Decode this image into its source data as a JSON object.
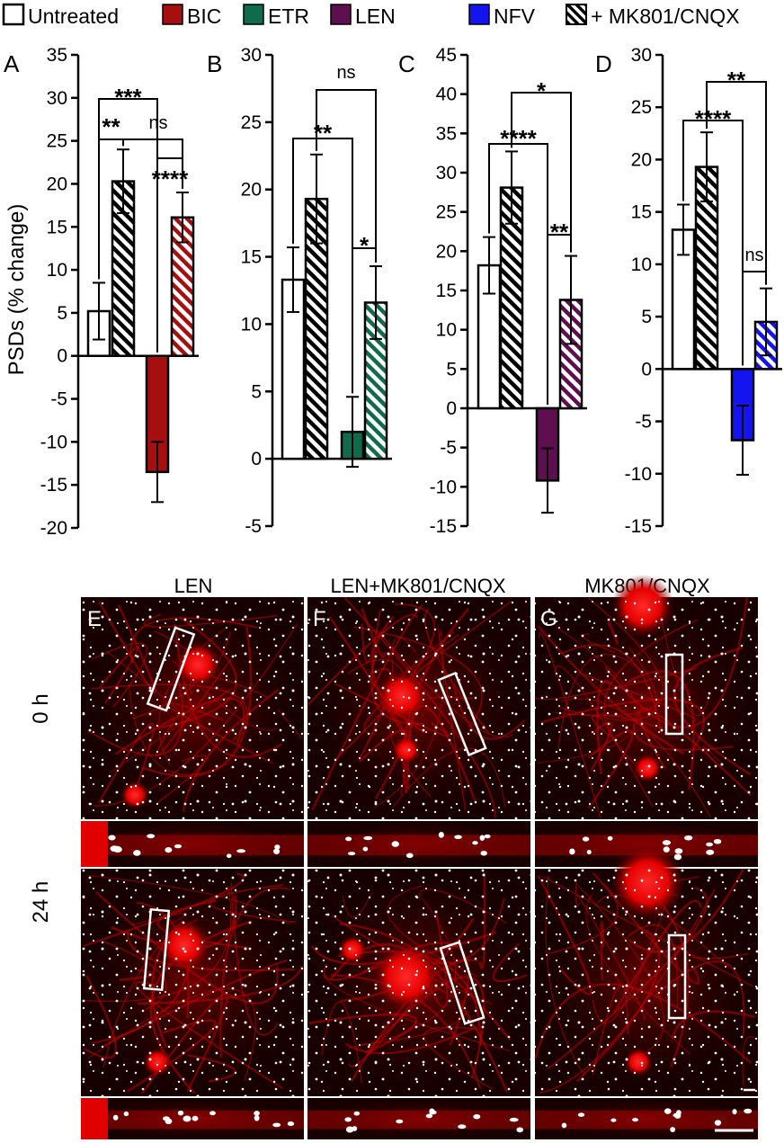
{
  "legend": [
    {
      "label": "Untreated",
      "fill": "#ffffff",
      "hatch": false
    },
    {
      "label": "BIC",
      "fill": "#a50f0f",
      "hatch": false
    },
    {
      "label": "ETR",
      "fill": "#0f6b4c",
      "hatch": false
    },
    {
      "label": "LEN",
      "fill": "#5e0f50",
      "hatch": false
    },
    {
      "label": "NFV",
      "fill": "#1414f0",
      "hatch": false
    },
    {
      "label": "+ MK801/CNQX",
      "fill": "#ffffff",
      "hatch": true
    }
  ],
  "ylabel": "PSDs (% change)",
  "chart_data": [
    {
      "type": "bar",
      "panel": "A",
      "ylim": [
        -20,
        35
      ],
      "yticks": [
        -20,
        -15,
        -10,
        -5,
        0,
        5,
        10,
        15,
        20,
        25,
        30,
        35
      ],
      "bars": [
        {
          "group": "Untreated",
          "value": 5.2,
          "error": 3.3,
          "color": "#ffffff",
          "hatch": false
        },
        {
          "group": "Untreated + MK801/CNQX",
          "value": 20.3,
          "error": 3.7,
          "color": "#ffffff",
          "hatch": true
        },
        {
          "group": "BIC",
          "value": -13.5,
          "error": 3.5,
          "color": "#a50f0f",
          "hatch": false
        },
        {
          "group": "BIC + MK801/CNQX",
          "value": 16.1,
          "error": 2.9,
          "color": "#a50f0f",
          "hatch": true
        }
      ],
      "significance": [
        {
          "from": 0,
          "to": 1,
          "label": "**"
        },
        {
          "from": 1,
          "to": 3,
          "label": "ns"
        },
        {
          "from": 2,
          "to": 3,
          "label": "****"
        },
        {
          "from": 0,
          "to": 2,
          "label": "***"
        }
      ]
    },
    {
      "type": "bar",
      "panel": "B",
      "ylim": [
        -5,
        30
      ],
      "yticks": [
        -5,
        0,
        5,
        10,
        15,
        20,
        25,
        30
      ],
      "bars": [
        {
          "group": "Untreated",
          "value": 13.3,
          "error": 2.4,
          "color": "#ffffff",
          "hatch": false
        },
        {
          "group": "Untreated + MK801/CNQX",
          "value": 19.3,
          "error": 3.3,
          "color": "#ffffff",
          "hatch": true
        },
        {
          "group": "ETR",
          "value": 2.0,
          "error": 2.6,
          "color": "#0f6b4c",
          "hatch": false
        },
        {
          "group": "ETR + MK801/CNQX",
          "value": 11.6,
          "error": 2.7,
          "color": "#0f6b4c",
          "hatch": true
        }
      ],
      "significance": [
        {
          "from": 2,
          "to": 3,
          "label": "*"
        },
        {
          "from": 0,
          "to": 2,
          "label": "**"
        },
        {
          "from": 1,
          "to": 3,
          "label": "ns"
        }
      ]
    },
    {
      "type": "bar",
      "panel": "C",
      "ylim": [
        -15,
        45
      ],
      "yticks": [
        -15,
        -10,
        -5,
        0,
        5,
        10,
        15,
        20,
        25,
        30,
        35,
        40,
        45
      ],
      "bars": [
        {
          "group": "Untreated",
          "value": 18.2,
          "error": 3.6,
          "color": "#ffffff",
          "hatch": false
        },
        {
          "group": "Untreated + MK801/CNQX",
          "value": 28.1,
          "error": 4.6,
          "color": "#ffffff",
          "hatch": true
        },
        {
          "group": "LEN",
          "value": -9.2,
          "error": 4.1,
          "color": "#5e0f50",
          "hatch": false
        },
        {
          "group": "LEN + MK801/CNQX",
          "value": 13.8,
          "error": 5.6,
          "color": "#5e0f50",
          "hatch": true
        }
      ],
      "significance": [
        {
          "from": 2,
          "to": 3,
          "label": "**"
        },
        {
          "from": 0,
          "to": 2,
          "label": "****"
        },
        {
          "from": 1,
          "to": 3,
          "label": "*"
        }
      ]
    },
    {
      "type": "bar",
      "panel": "D",
      "ylim": [
        -15,
        30
      ],
      "yticks": [
        -15,
        -10,
        -5,
        0,
        5,
        10,
        15,
        20,
        25,
        30
      ],
      "bars": [
        {
          "group": "Untreated",
          "value": 13.3,
          "error": 2.4,
          "color": "#ffffff",
          "hatch": false
        },
        {
          "group": "Untreated + MK801/CNQX",
          "value": 19.3,
          "error": 3.3,
          "color": "#ffffff",
          "hatch": true
        },
        {
          "group": "NFV",
          "value": -6.8,
          "error": 3.3,
          "color": "#1414f0",
          "hatch": false
        },
        {
          "group": "NFV + MK801/CNQX",
          "value": 4.5,
          "error": 3.2,
          "color": "#1414f0",
          "hatch": true
        }
      ],
      "significance": [
        {
          "from": 2,
          "to": 3,
          "label": "ns"
        },
        {
          "from": 0,
          "to": 2,
          "label": "****"
        },
        {
          "from": 1,
          "to": 3,
          "label": "**"
        }
      ]
    }
  ],
  "images": {
    "columns": [
      "LEN",
      "LEN+MK801/CNQX",
      "MK801/CNQX"
    ],
    "letters": [
      "E",
      "F",
      "G"
    ],
    "rows": [
      "0 h",
      "24 h"
    ]
  }
}
